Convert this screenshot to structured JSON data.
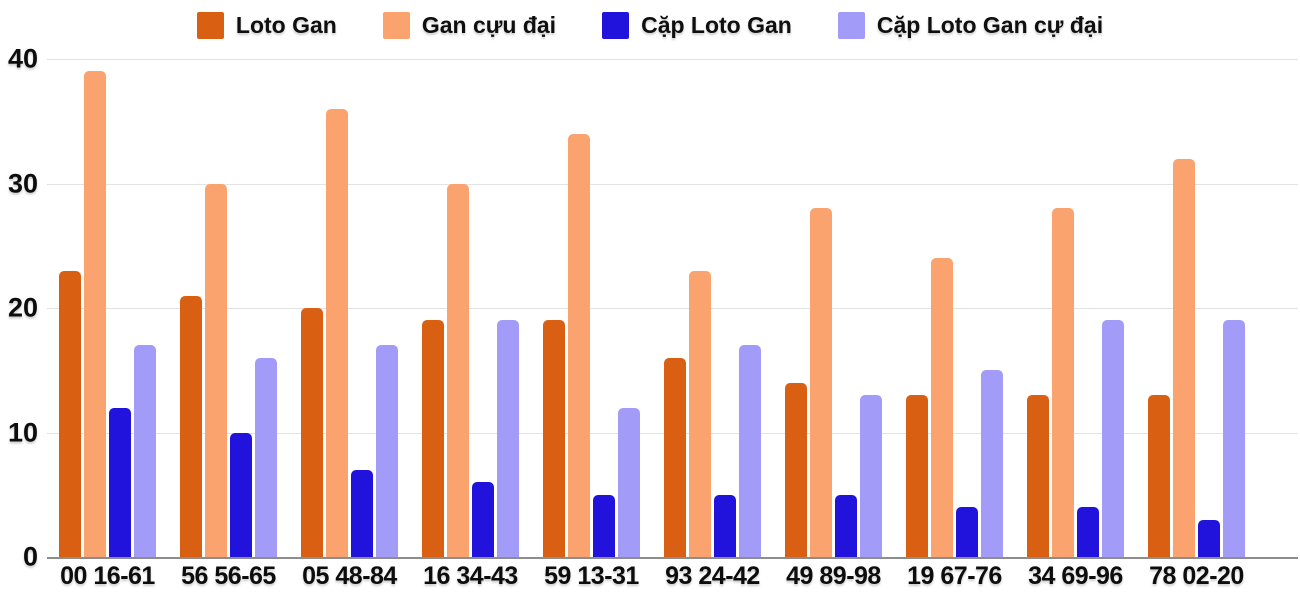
{
  "colors": {
    "background": "#ffffff",
    "grid": "#e3e3e3",
    "axis": "#8d8d8d",
    "text": "#0d0d0d"
  },
  "chart_data": {
    "type": "bar",
    "title": "",
    "xlabel": "",
    "ylabel": "",
    "ylim": [
      0,
      40
    ],
    "yticks": [
      0,
      10,
      20,
      30,
      40
    ],
    "grid": true,
    "legend_position": "top",
    "categories": [
      "00 16-61",
      "56 56-65",
      "05 48-84",
      "16 34-43",
      "59 13-31",
      "93 24-42",
      "49 89-98",
      "19 67-76",
      "34 69-96",
      "78 02-20"
    ],
    "series": [
      {
        "name": "Loto Gan",
        "color": "#d95f13",
        "values": [
          23,
          21,
          20,
          19,
          19,
          16,
          14,
          13,
          13,
          13
        ]
      },
      {
        "name": "Gan cựu đại",
        "color": "#fba36e",
        "values": [
          39,
          30,
          36,
          30,
          34,
          23,
          28,
          24,
          28,
          32
        ]
      },
      {
        "name": "Cặp Loto Gan",
        "color": "#2113dc",
        "values": [
          12,
          10,
          7,
          6,
          5,
          5,
          5,
          4,
          4,
          3
        ]
      },
      {
        "name": "Cặp Loto Gan cự đại",
        "color": "#a39bf8",
        "values": [
          17,
          16,
          17,
          19,
          12,
          17,
          13,
          15,
          19,
          19
        ]
      }
    ]
  }
}
